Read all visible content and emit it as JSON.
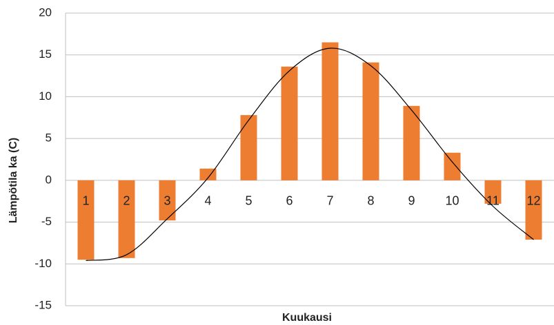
{
  "chart_data": {
    "type": "bar",
    "x_label": "Kuukausi",
    "y_label": "Lämpötila ka (C)",
    "categories": [
      "1",
      "2",
      "3",
      "4",
      "5",
      "6",
      "7",
      "8",
      "9",
      "10",
      "11",
      "12"
    ],
    "series": [
      {
        "type": "bar",
        "color": "#ed7d31",
        "values": [
          -9.5,
          -9.3,
          -4.8,
          1.4,
          7.8,
          13.6,
          16.5,
          14.1,
          8.9,
          3.3,
          -2.8,
          -7.1
        ]
      },
      {
        "type": "line",
        "color": "#000000",
        "values": [
          -9.6,
          -8.9,
          -4.6,
          0.3,
          7.2,
          13.1,
          15.8,
          13.7,
          8.4,
          2.2,
          -3.1,
          -7.1
        ]
      }
    ],
    "ylim": [
      -15,
      20
    ],
    "yticks": [
      -15,
      -10,
      -5,
      0,
      5,
      10,
      15,
      20
    ],
    "grid": true
  }
}
